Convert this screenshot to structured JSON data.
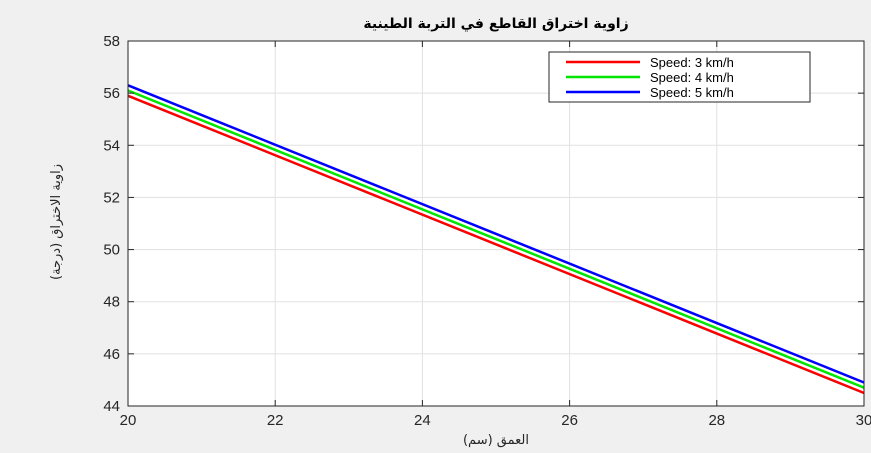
{
  "chart_data": {
    "type": "line",
    "title": "زاوية اختراق القاطع في التربة الطينية",
    "xlabel": "العمق (سم)",
    "ylabel": "زاوية الاختراق (درجة)",
    "xlim": [
      20,
      30
    ],
    "ylim": [
      44,
      58
    ],
    "xticks": [
      20,
      22,
      24,
      26,
      28,
      30
    ],
    "yticks": [
      44,
      46,
      48,
      50,
      52,
      54,
      56,
      58
    ],
    "grid": true,
    "legend_position": "top-right",
    "series": [
      {
        "name": "Speed: 3 km/h",
        "color": "#ff0000",
        "x": [
          20,
          30
        ],
        "y": [
          55.9,
          44.5
        ]
      },
      {
        "name": "Speed: 4 km/h",
        "color": "#00e600",
        "x": [
          20,
          30
        ],
        "y": [
          56.1,
          44.7
        ]
      },
      {
        "name": "Speed: 5 km/h",
        "color": "#0000ff",
        "x": [
          20,
          30
        ],
        "y": [
          56.3,
          44.9
        ]
      }
    ]
  }
}
